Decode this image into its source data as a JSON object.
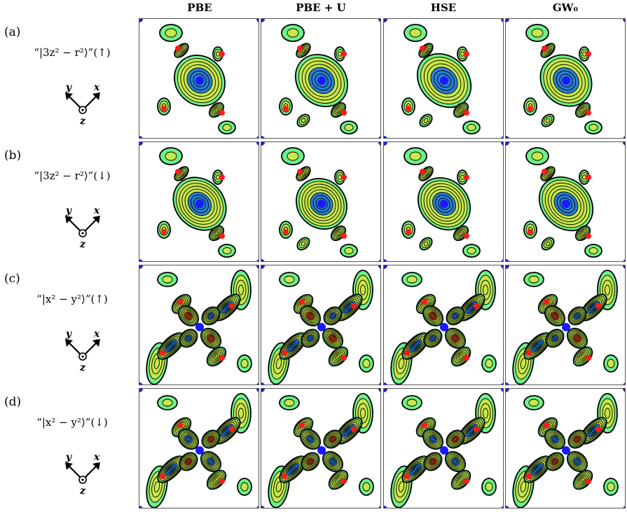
{
  "columns": [
    "PBE",
    "PBE + U",
    "HSE",
    "GW₀"
  ],
  "rows": [
    {
      "tag": "(a)",
      "orbital": "“|3z² − r²⟩”(↑)"
    },
    {
      "tag": "(b)",
      "orbital": "“|3z² − r²⟩”(↓)"
    },
    {
      "tag": "(c)",
      "orbital": "“|x² − y²⟩”(↑)"
    },
    {
      "tag": "(d)",
      "orbital": "“|x² − y²⟩”(↓)"
    }
  ],
  "axis_labels": {
    "y": "y",
    "x": "x",
    "z": "z"
  },
  "colors": {
    "contour_fill_outer": "#6ef08a",
    "contour_fill_mid": "#c7e84a",
    "contour_core_blue": "#2a7fd4",
    "contour_core_red": "#d9431c",
    "contour_line": "#000000",
    "center_atom": "#1a1aff",
    "ligand_atom": "#ff1a1a",
    "corner_atom": "#2222cc"
  }
}
